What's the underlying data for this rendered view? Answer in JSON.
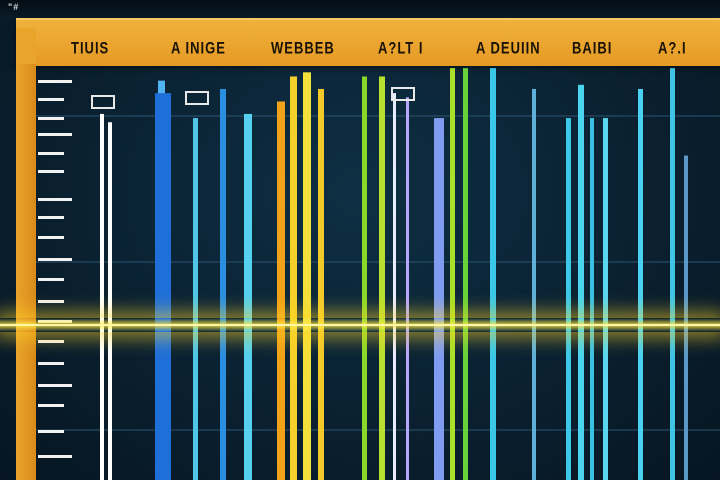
{
  "header": {
    "corner_mark": "\"#",
    "labels": [
      "TIUIS",
      "A INIGE",
      "WEBBEB",
      "A?LT I",
      "A DEUIIN",
      "BAIBI",
      "A?.I"
    ]
  },
  "chart_data": {
    "type": "bar",
    "grid": true,
    "legend": "none",
    "title": "",
    "xlabel": "",
    "ylabel": "",
    "bars": [
      {
        "color": "#ffffff",
        "level": 0.88
      },
      {
        "color": "#ffffff",
        "level": 0.86
      },
      {
        "color": "#4fb4f0",
        "level": 0.96
      },
      {
        "color": "#1f6fd8",
        "level": 0.93
      },
      {
        "color": "#4fc6e8",
        "level": 0.87
      },
      {
        "color": "#2a8fe0",
        "level": 0.94
      },
      {
        "color": "#55d0ee",
        "level": 0.88
      },
      {
        "color": "#f2a218",
        "level": 0.91
      },
      {
        "color": "#f6d02a",
        "level": 0.97
      },
      {
        "color": "#f4e03a",
        "level": 0.98
      },
      {
        "color": "#f3c92a",
        "level": 0.94
      },
      {
        "color": "#8ad82a",
        "level": 0.97
      },
      {
        "color": "#b8e030",
        "level": 0.97
      },
      {
        "color": "#e8ecff",
        "level": 0.93
      },
      {
        "color": "#b7a6ff",
        "level": 0.92
      },
      {
        "color": "#7f9cf0",
        "level": 0.87
      },
      {
        "color": "#a8e02a",
        "level": 0.99
      },
      {
        "color": "#68d23a",
        "level": 0.99
      },
      {
        "color": "#3ac8e8",
        "level": 0.99
      },
      {
        "color": "#5fb0d8",
        "level": 0.94
      },
      {
        "color": "#3cc8e6",
        "level": 0.87
      },
      {
        "color": "#4ad4ee",
        "level": 0.95
      },
      {
        "color": "#3ac0e0",
        "level": 0.87
      },
      {
        "color": "#5ad6f0",
        "level": 0.87
      },
      {
        "color": "#4ad0f0",
        "level": 0.94
      },
      {
        "color": "#3fc4e4",
        "level": 0.99
      },
      {
        "color": "#5a98c8",
        "level": 0.78
      }
    ]
  }
}
